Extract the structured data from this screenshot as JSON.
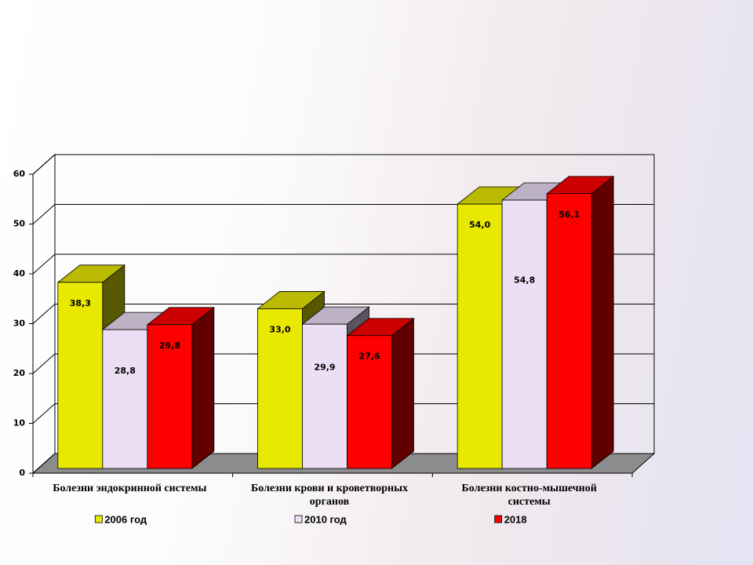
{
  "chart_data": {
    "type": "bar3d",
    "categories": [
      "Болезни эндокринной системы",
      "Болезни крови и кроветворных органов",
      "Болезни костно-мышечной системы"
    ],
    "series": [
      {
        "name": "2006 год",
        "color": "#e8e800",
        "values": [
          38.3,
          33.0,
          54.0
        ],
        "value_labels": [
          "38,3",
          "33,0",
          "54,0"
        ]
      },
      {
        "name": "2010 год",
        "color": "#ecdff5",
        "values": [
          28.8,
          29.9,
          54.8
        ],
        "value_labels": [
          "28,8",
          "29,9",
          "54,8"
        ]
      },
      {
        "name": "2018",
        "color": "#ff0000",
        "values": [
          29.8,
          27.6,
          56.1
        ],
        "value_labels": [
          "29,8",
          "27,6",
          "56,1"
        ]
      }
    ],
    "ylim": [
      0,
      60
    ],
    "yticks": [
      0,
      10,
      20,
      30,
      40,
      50,
      60
    ],
    "grid": true,
    "legend": "bottom"
  }
}
